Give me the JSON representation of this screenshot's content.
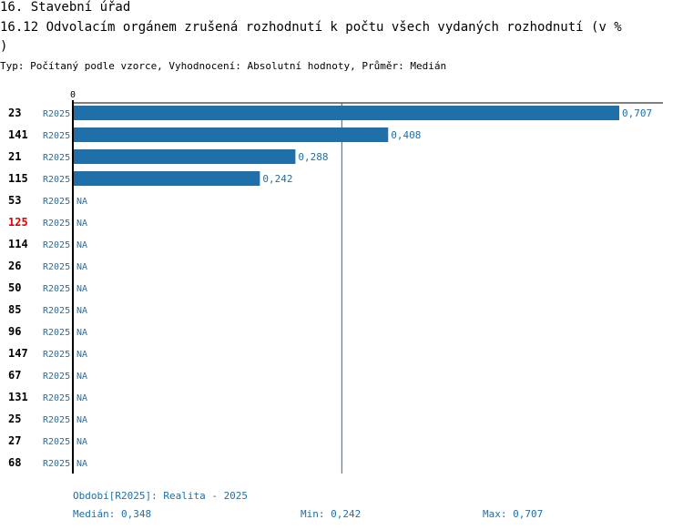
{
  "header": {
    "title_line1": "16. Stavební úřad",
    "title_line2": "16.12 Odvolacím orgánem zrušená rozhodnutí k počtu všech vydaných rozhodnutí (v %",
    "title_line3": ")",
    "subtitle": "Typ: Počítaný podle vzorce, Vyhodnocení: Absolutní hodnoty, Průměr: Medián"
  },
  "chart_data": {
    "type": "bar",
    "orientation": "horizontal",
    "axis_tick_label": "0",
    "xlim": [
      0,
      0.707
    ],
    "median_line": 0.348,
    "bar_color": "#1f6fa8",
    "highlight_color": "#e00000",
    "rows": [
      {
        "id": "23",
        "period": "R2025",
        "value": 0.707,
        "label": "0,707",
        "highlight": false
      },
      {
        "id": "141",
        "period": "R2025",
        "value": 0.408,
        "label": "0,408",
        "highlight": false
      },
      {
        "id": "21",
        "period": "R2025",
        "value": 0.288,
        "label": "0,288",
        "highlight": false
      },
      {
        "id": "115",
        "period": "R2025",
        "value": 0.242,
        "label": "0,242",
        "highlight": false
      },
      {
        "id": "53",
        "period": "R2025",
        "value": null,
        "label": "NA",
        "highlight": false
      },
      {
        "id": "125",
        "period": "R2025",
        "value": null,
        "label": "NA",
        "highlight": true
      },
      {
        "id": "114",
        "period": "R2025",
        "value": null,
        "label": "NA",
        "highlight": false
      },
      {
        "id": "26",
        "period": "R2025",
        "value": null,
        "label": "NA",
        "highlight": false
      },
      {
        "id": "50",
        "period": "R2025",
        "value": null,
        "label": "NA",
        "highlight": false
      },
      {
        "id": "85",
        "period": "R2025",
        "value": null,
        "label": "NA",
        "highlight": false
      },
      {
        "id": "96",
        "period": "R2025",
        "value": null,
        "label": "NA",
        "highlight": false
      },
      {
        "id": "147",
        "period": "R2025",
        "value": null,
        "label": "NA",
        "highlight": false
      },
      {
        "id": "67",
        "period": "R2025",
        "value": null,
        "label": "NA",
        "highlight": false
      },
      {
        "id": "131",
        "period": "R2025",
        "value": null,
        "label": "NA",
        "highlight": false
      },
      {
        "id": "25",
        "period": "R2025",
        "value": null,
        "label": "NA",
        "highlight": false
      },
      {
        "id": "27",
        "period": "R2025",
        "value": null,
        "label": "NA",
        "highlight": false
      },
      {
        "id": "68",
        "period": "R2025",
        "value": null,
        "label": "NA",
        "highlight": false
      }
    ]
  },
  "footer": {
    "period_legend": "Období[R2025]: Realita - 2025",
    "median": "Medián: 0,348",
    "min": "Min: 0,242",
    "max": "Max: 0,707"
  }
}
